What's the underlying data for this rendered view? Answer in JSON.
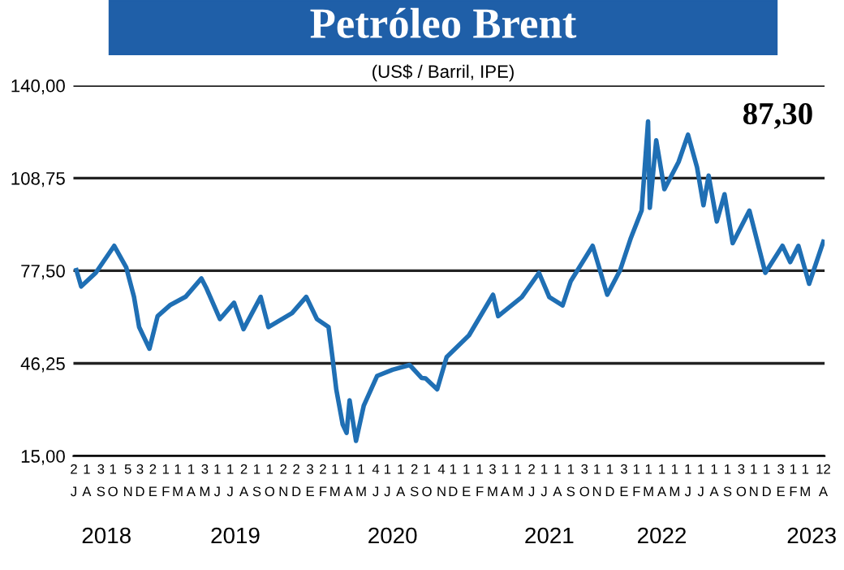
{
  "chart_data": {
    "type": "line",
    "title": "Petróleo Brent",
    "subtitle": "(US$ / Barril, IPE)",
    "annotations": [
      "87,30"
    ],
    "series": [
      {
        "color": "#1f6fb4",
        "x": [
          "2018-07-08",
          "2018-07-19",
          "2018-08-22",
          "2018-10-04",
          "2018-11-01",
          "2018-11-19",
          "2018-12-01",
          "2018-12-25",
          "2019-01-13",
          "2019-02-12",
          "2019-03-19",
          "2019-04-25",
          "2019-05-07",
          "2019-06-07",
          "2019-07-10",
          "2019-08-01",
          "2019-09-10",
          "2019-09-28",
          "2019-11-22",
          "2019-12-25",
          "2020-01-19",
          "2020-02-15",
          "2020-02-24",
          "2020-03-04",
          "2020-03-19",
          "2020-03-28",
          "2020-04-04",
          "2020-04-19",
          "2020-05-07",
          "2020-06-07",
          "2020-07-13",
          "2020-08-22",
          "2020-09-19",
          "2020-09-28",
          "2020-10-25",
          "2020-11-16",
          "2021-01-07",
          "2021-03-04",
          "2021-03-16",
          "2021-05-10",
          "2021-06-19",
          "2021-07-13",
          "2021-08-13",
          "2021-09-01",
          "2021-10-22",
          "2021-11-25",
          "2021-12-25",
          "2022-01-19",
          "2022-02-13",
          "2022-02-28",
          "2022-03-04",
          "2022-03-19",
          "2022-04-07",
          "2022-05-10",
          "2022-06-01",
          "2022-06-22",
          "2022-07-07",
          "2022-07-19",
          "2022-08-07",
          "2022-08-25",
          "2022-09-13",
          "2022-10-22",
          "2022-11-28",
          "2023-01-07",
          "2023-01-25",
          "2023-02-13",
          "2023-03-10",
          "2023-04-12"
        ],
        "values": [
          77.7,
          72.2,
          76.8,
          85.9,
          78.6,
          68.7,
          58.5,
          51.2,
          62.2,
          66.0,
          68.7,
          74.9,
          71.5,
          61.2,
          66.7,
          57.8,
          68.7,
          58.5,
          63.2,
          68.7,
          61.2,
          58.5,
          48.4,
          37.5,
          25.6,
          22.8,
          33.8,
          20.1,
          32.0,
          42.0,
          44.1,
          45.7,
          41.3,
          41.2,
          37.5,
          48.4,
          55.7,
          69.4,
          62.2,
          68.6,
          76.8,
          68.6,
          65.8,
          74.0,
          85.9,
          69.4,
          77.7,
          88.6,
          97.8,
          127.9,
          98.7,
          121.5,
          105.0,
          114.2,
          123.4,
          112.4,
          99.6,
          109.6,
          94.1,
          103.3,
          86.8,
          97.8,
          76.8,
          85.9,
          80.4,
          85.9,
          73.1,
          87.3
        ]
      }
    ],
    "xlim": [
      "2018-07-01",
      "2023-04-15"
    ],
    "xticks": [
      {
        "value": "2018-07-02",
        "label": "2\nJ"
      },
      {
        "value": "2018-08-01",
        "label": "1\nA"
      },
      {
        "value": "2018-09-03",
        "label": "3\nS"
      },
      {
        "value": "2018-10-01",
        "label": "1\nO"
      },
      {
        "value": "2018-11-05",
        "label": "5\nN"
      },
      {
        "value": "2018-12-03",
        "label": "3\nD"
      },
      {
        "value": "2019-01-02",
        "label": "2\nE"
      },
      {
        "value": "2019-02-01",
        "label": "1\nF"
      },
      {
        "value": "2019-03-01",
        "label": "1\nM"
      },
      {
        "value": "2019-04-01",
        "label": "1\nA"
      },
      {
        "value": "2019-05-03",
        "label": "3\nM"
      },
      {
        "value": "2019-06-01",
        "label": "1\nJ"
      },
      {
        "value": "2019-07-01",
        "label": "1\nJ"
      },
      {
        "value": "2019-08-02",
        "label": "2\nA"
      },
      {
        "value": "2019-09-01",
        "label": "1\nS"
      },
      {
        "value": "2019-10-01",
        "label": "1\nO"
      },
      {
        "value": "2019-11-02",
        "label": "2\nN"
      },
      {
        "value": "2019-12-02",
        "label": "2\nD"
      },
      {
        "value": "2020-01-03",
        "label": "3\nE"
      },
      {
        "value": "2020-02-02",
        "label": "2\nF"
      },
      {
        "value": "2020-03-01",
        "label": "1\nM"
      },
      {
        "value": "2020-04-01",
        "label": "1\nA"
      },
      {
        "value": "2020-05-01",
        "label": "1\nM"
      },
      {
        "value": "2020-06-04",
        "label": "4\nJ"
      },
      {
        "value": "2020-07-01",
        "label": "1\nJ"
      },
      {
        "value": "2020-08-01",
        "label": "1\nA"
      },
      {
        "value": "2020-09-02",
        "label": "2\nS"
      },
      {
        "value": "2020-10-01",
        "label": "1\nO"
      },
      {
        "value": "2020-11-04",
        "label": "4\nN"
      },
      {
        "value": "2020-12-01",
        "label": "1\nD"
      },
      {
        "value": "2021-01-01",
        "label": "1\nE"
      },
      {
        "value": "2021-02-01",
        "label": "1\nF"
      },
      {
        "value": "2021-03-03",
        "label": "3\nM"
      },
      {
        "value": "2021-04-01",
        "label": "1\nA"
      },
      {
        "value": "2021-05-01",
        "label": "1\nM"
      },
      {
        "value": "2021-06-02",
        "label": "2\nJ"
      },
      {
        "value": "2021-07-01",
        "label": "1\nJ"
      },
      {
        "value": "2021-08-01",
        "label": "1\nA"
      },
      {
        "value": "2021-09-01",
        "label": "1\nS"
      },
      {
        "value": "2021-10-03",
        "label": "3\nO"
      },
      {
        "value": "2021-11-01",
        "label": "1\nN"
      },
      {
        "value": "2021-12-01",
        "label": "1\nD"
      },
      {
        "value": "2022-01-03",
        "label": "3\nE"
      },
      {
        "value": "2022-02-01",
        "label": "1\nF"
      },
      {
        "value": "2022-03-01",
        "label": "1\nM"
      },
      {
        "value": "2022-04-01",
        "label": "1\nA"
      },
      {
        "value": "2022-05-01",
        "label": "1\nM"
      },
      {
        "value": "2022-06-01",
        "label": "1\nJ"
      },
      {
        "value": "2022-07-01",
        "label": "1\nJ"
      },
      {
        "value": "2022-08-01",
        "label": "1\nA"
      },
      {
        "value": "2022-09-01",
        "label": "1\nS"
      },
      {
        "value": "2022-10-03",
        "label": "3\nO"
      },
      {
        "value": "2022-11-01",
        "label": "1\nN"
      },
      {
        "value": "2022-12-01",
        "label": "1\nD"
      },
      {
        "value": "2023-01-03",
        "label": "3\nE"
      },
      {
        "value": "2023-02-01",
        "label": "1\nF"
      },
      {
        "value": "2023-03-01",
        "label": "1\nM"
      },
      {
        "value": "2023-04-12",
        "label": "12\nA"
      }
    ],
    "x2lim": [
      "2018-07-01",
      "2023-04-15"
    ],
    "x2ticks": [
      {
        "value": "2018-09-16",
        "label": "2018"
      },
      {
        "value": "2019-07-13",
        "label": "2019"
      },
      {
        "value": "2020-07-13",
        "label": "2020"
      },
      {
        "value": "2021-07-13",
        "label": "2021"
      },
      {
        "value": "2022-04-01",
        "label": "2022"
      },
      {
        "value": "2023-03-16",
        "label": "2023"
      }
    ],
    "ylim": [
      15,
      140
    ],
    "yticks": [
      {
        "value": 15,
        "label": "15,00"
      },
      {
        "value": 46.25,
        "label": "46,25"
      },
      {
        "value": 77.5,
        "label": "77,50"
      },
      {
        "value": 108.75,
        "label": "108,75"
      },
      {
        "value": 140,
        "label": "140,00"
      }
    ],
    "grid": "y",
    "legend": false,
    "marker": "none",
    "line_style": "solid"
  }
}
